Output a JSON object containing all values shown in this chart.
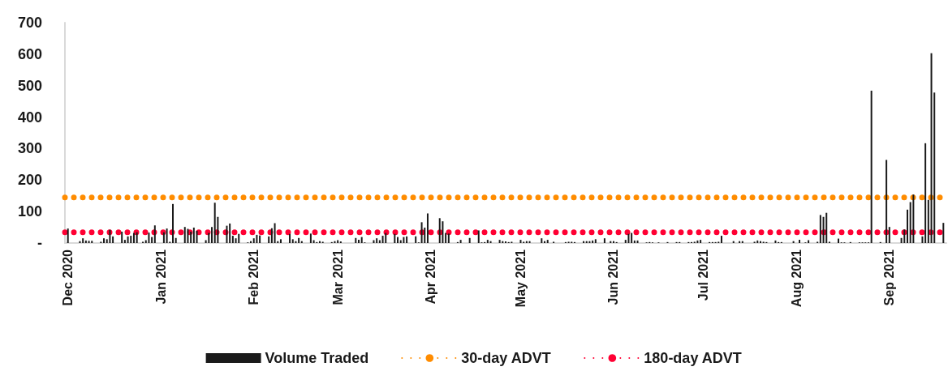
{
  "chart_data": {
    "type": "bar",
    "xlim": [
      "2020-11-30",
      "2021-09-20"
    ],
    "xticks": [
      {
        "value": "2020-12-01",
        "label": "Dec 2020"
      },
      {
        "value": "2021-01-01",
        "label": "Jan 2021"
      },
      {
        "value": "2021-02-01",
        "label": "Feb 2021"
      },
      {
        "value": "2021-03-01",
        "label": "Mar 2021"
      },
      {
        "value": "2021-04-01",
        "label": "Apr 2021"
      },
      {
        "value": "2021-05-01",
        "label": "May 2021"
      },
      {
        "value": "2021-06-01",
        "label": "Jun 2021"
      },
      {
        "value": "2021-07-01",
        "label": "Jul 2021"
      },
      {
        "value": "2021-08-01",
        "label": "Aug 2021"
      },
      {
        "value": "2021-09-01",
        "label": "Sep 2021"
      }
    ],
    "ylim": [
      0,
      700
    ],
    "yticks": [
      {
        "value": 0,
        "label": "-"
      },
      100,
      200,
      300,
      400,
      500,
      600,
      700
    ],
    "grid": false,
    "legend": "bottom",
    "series": [
      {
        "name": "Volume Traded",
        "color": "#1a1a1a",
        "x": [
          "2020-12-01",
          "2020-12-05",
          "2020-12-06",
          "2020-12-07",
          "2020-12-08",
          "2020-12-09",
          "2020-12-12",
          "2020-12-13",
          "2020-12-14",
          "2020-12-15",
          "2020-12-16",
          "2020-12-19",
          "2020-12-20",
          "2020-12-21",
          "2020-12-22",
          "2020-12-23",
          "2020-12-24",
          "2020-12-26",
          "2020-12-27",
          "2020-12-28",
          "2020-12-29",
          "2020-12-30",
          "2021-01-02",
          "2021-01-03",
          "2021-01-04",
          "2021-01-05",
          "2021-01-06",
          "2021-01-09",
          "2021-01-10",
          "2021-01-11",
          "2021-01-12",
          "2021-01-13",
          "2021-01-16",
          "2021-01-17",
          "2021-01-18",
          "2021-01-19",
          "2021-01-20",
          "2021-01-23",
          "2021-01-24",
          "2021-01-25",
          "2021-01-26",
          "2021-01-27",
          "2021-01-30",
          "2021-01-31",
          "2021-02-01",
          "2021-02-02",
          "2021-02-03",
          "2021-02-06",
          "2021-02-07",
          "2021-02-08",
          "2021-02-09",
          "2021-02-10",
          "2021-02-13",
          "2021-02-14",
          "2021-02-15",
          "2021-02-16",
          "2021-02-17",
          "2021-02-20",
          "2021-02-21",
          "2021-02-22",
          "2021-02-23",
          "2021-02-24",
          "2021-02-27",
          "2021-02-28",
          "2021-03-01",
          "2021-03-02",
          "2021-03-07",
          "2021-03-08",
          "2021-03-09",
          "2021-03-10",
          "2021-03-13",
          "2021-03-14",
          "2021-03-15",
          "2021-03-16",
          "2021-03-17",
          "2021-03-20",
          "2021-03-21",
          "2021-03-22",
          "2021-03-23",
          "2021-03-24",
          "2021-03-27",
          "2021-03-28",
          "2021-03-29",
          "2021-03-30",
          "2021-03-31",
          "2021-04-04",
          "2021-04-05",
          "2021-04-06",
          "2021-04-07",
          "2021-04-10",
          "2021-04-11",
          "2021-04-14",
          "2021-04-17",
          "2021-04-18",
          "2021-04-19",
          "2021-04-20",
          "2021-04-21",
          "2021-04-24",
          "2021-04-25",
          "2021-04-26",
          "2021-04-27",
          "2021-04-28",
          "2021-05-01",
          "2021-05-02",
          "2021-05-03",
          "2021-05-04",
          "2021-05-08",
          "2021-05-09",
          "2021-05-10",
          "2021-05-12",
          "2021-05-16",
          "2021-05-17",
          "2021-05-18",
          "2021-05-19",
          "2021-05-22",
          "2021-05-23",
          "2021-05-24",
          "2021-05-25",
          "2021-05-26",
          "2021-05-29",
          "2021-05-31",
          "2021-06-01",
          "2021-06-02",
          "2021-06-05",
          "2021-06-06",
          "2021-06-07",
          "2021-06-08",
          "2021-06-09",
          "2021-06-12",
          "2021-06-13",
          "2021-06-14",
          "2021-06-16",
          "2021-06-19",
          "2021-06-22",
          "2021-06-23",
          "2021-06-26",
          "2021-06-27",
          "2021-06-28",
          "2021-06-29",
          "2021-06-30",
          "2021-07-03",
          "2021-07-04",
          "2021-07-05",
          "2021-07-06",
          "2021-07-07",
          "2021-07-11",
          "2021-07-13",
          "2021-07-14",
          "2021-07-18",
          "2021-07-19",
          "2021-07-20",
          "2021-07-21",
          "2021-07-22",
          "2021-07-25",
          "2021-07-26",
          "2021-07-27",
          "2021-07-31",
          "2021-08-02",
          "2021-08-04",
          "2021-08-05",
          "2021-08-08",
          "2021-08-09",
          "2021-08-10",
          "2021-08-11",
          "2021-08-12",
          "2021-08-15",
          "2021-08-16",
          "2021-08-17",
          "2021-08-19",
          "2021-08-22",
          "2021-08-23",
          "2021-08-24",
          "2021-08-25",
          "2021-08-26",
          "2021-08-29",
          "2021-08-31",
          "2021-09-01",
          "2021-09-05",
          "2021-09-06",
          "2021-09-07",
          "2021-09-08",
          "2021-09-09",
          "2021-09-12",
          "2021-09-13",
          "2021-09-14",
          "2021-09-15",
          "2021-09-16",
          "2021-09-19"
        ],
        "values": [
          46,
          6,
          15,
          8,
          7,
          7,
          4,
          15,
          12,
          42,
          21,
          36,
          10,
          21,
          23,
          32,
          34,
          4,
          9,
          33,
          19,
          56,
          34,
          46,
          4,
          124,
          16,
          51,
          45,
          36,
          49,
          39,
          9,
          32,
          51,
          128,
          83,
          55,
          62,
          23,
          15,
          29,
          2,
          6,
          15,
          26,
          24,
          21,
          47,
          63,
          6,
          12,
          29,
          12,
          6,
          16,
          6,
          30,
          9,
          3,
          6,
          4,
          3,
          6,
          9,
          5,
          16,
          10,
          19,
          2,
          9,
          15,
          9,
          23,
          32,
          29,
          19,
          9,
          19,
          21,
          21,
          2,
          66,
          49,
          94,
          79,
          69,
          32,
          30,
          3,
          10,
          16,
          40,
          2,
          3,
          10,
          6,
          10,
          6,
          5,
          3,
          4,
          10,
          4,
          6,
          6,
          15,
          6,
          10,
          4,
          3,
          4,
          4,
          3,
          6,
          6,
          6,
          8,
          12,
          15,
          6,
          6,
          3,
          10,
          29,
          32,
          8,
          8,
          2,
          3,
          2,
          2,
          3,
          3,
          3,
          3,
          3,
          4,
          8,
          10,
          3,
          3,
          3,
          4,
          23,
          6,
          6,
          6,
          4,
          8,
          6,
          4,
          3,
          8,
          3,
          3,
          6,
          10,
          2,
          9,
          4,
          89,
          83,
          96,
          4,
          14,
          2,
          2,
          3,
          2,
          2,
          2,
          2,
          484,
          3,
          264,
          51,
          16,
          43,
          106,
          130,
          154,
          21,
          317,
          137,
          603,
          478,
          64
        ]
      }
    ],
    "ref_lines": [
      {
        "axis": "y",
        "value": 145,
        "label": "30-day ADVT",
        "color": "#ff8c00",
        "line_style": "dotted"
      },
      {
        "axis": "y",
        "value": 34,
        "label": "180-day ADVT",
        "color": "#ff0033",
        "line_style": "dotted"
      }
    ]
  }
}
